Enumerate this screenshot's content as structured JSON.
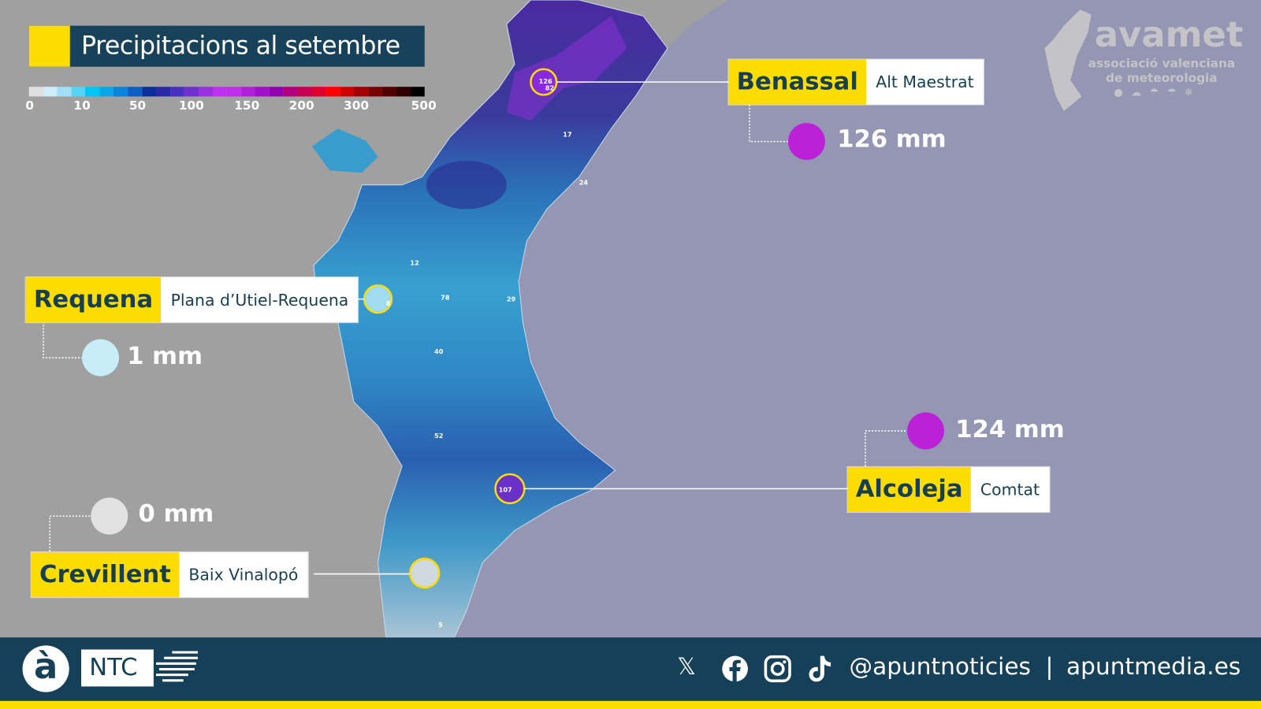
{
  "title": "Precipitacions al setembre",
  "legend": {
    "ticks": [
      "0",
      "10",
      "50",
      "100",
      "150",
      "200",
      "300",
      "500"
    ],
    "colors": [
      "#e0e0e0",
      "#cdeefa",
      "#9fe0f8",
      "#55d4f6",
      "#00c6f5",
      "#0aa6e8",
      "#0a84d8",
      "#0a5fc0",
      "#0a2f9a",
      "#2a2aa8",
      "#4a2ec0",
      "#7030d0",
      "#9a30e0",
      "#c030f0",
      "#c030e8",
      "#b020d8",
      "#a010c8",
      "#9000b0",
      "#b00080",
      "#c80050",
      "#e00030",
      "#ff0000",
      "#d00000",
      "#a00000",
      "#780000",
      "#500000",
      "#300000",
      "#000000"
    ]
  },
  "watermark": {
    "name": "avamet",
    "line1": "associació valenciana",
    "line2": "de meteorologia"
  },
  "callouts": [
    {
      "town": "Benassal",
      "comarca": "Alt Maestrat",
      "value": "126 mm",
      "color": "#bb22d8"
    },
    {
      "town": "Requena",
      "comarca": "Plana d’Utiel-Requena",
      "value": "1 mm",
      "color": "#c8ecf8"
    },
    {
      "town": "Alcoleja",
      "comarca": "Comtat",
      "value": "124 mm",
      "color": "#bb22d8"
    },
    {
      "town": "Crevillent",
      "comarca": "Baix Vinalopó",
      "value": "0 mm",
      "color": "#e2e2e2"
    }
  ],
  "station_labels": [
    "126",
    "82",
    "107",
    "40",
    "52",
    "78",
    "29",
    "17",
    "12",
    "5",
    "24",
    "8"
  ],
  "footer": {
    "logo_letter": "à",
    "brand": "NTC",
    "icons": [
      "x-icon",
      "facebook-icon",
      "instagram-icon",
      "tiktok-icon"
    ],
    "handle": "@apuntnoticies",
    "separator": "|",
    "site": "apuntmedia.es"
  },
  "colors": {
    "navy": "#164058",
    "yellow": "#fddc00",
    "sea": "#9496b4",
    "land": "#a0a0a0"
  }
}
